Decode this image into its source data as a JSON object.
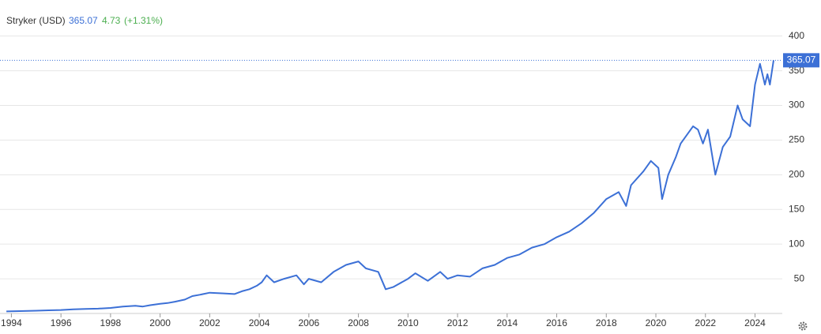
{
  "chart_data": {
    "type": "line",
    "series": [
      {
        "name": "Stryker (USD)",
        "color": "#3c70d6",
        "values": [
          3,
          3.5,
          4,
          4.5,
          5,
          6,
          6.5,
          7,
          8,
          10,
          11,
          10,
          12,
          14,
          15,
          17,
          20,
          25,
          27,
          30,
          29,
          28,
          32,
          35,
          40,
          45,
          55,
          45,
          50,
          55,
          42,
          50,
          45,
          60,
          70,
          75,
          65,
          60,
          35,
          38,
          50,
          58,
          47,
          60,
          50,
          55,
          53,
          65,
          70,
          80,
          85,
          95,
          100,
          110,
          118,
          130,
          145,
          165,
          175,
          155,
          185,
          205,
          220,
          210,
          165,
          200,
          225,
          245,
          270,
          265,
          245,
          265,
          200,
          240,
          255,
          300,
          280,
          270,
          330,
          360,
          330,
          345,
          330,
          365.07
        ]
      }
    ],
    "x": [
      1993.8,
      1994.5,
      1995,
      1995.5,
      1996,
      1996.5,
      1997,
      1997.5,
      1998,
      1998.5,
      1999,
      1999.3,
      1999.6,
      2000,
      2000.3,
      2000.6,
      2001,
      2001.3,
      2001.6,
      2002,
      2002.5,
      2003,
      2003.3,
      2003.6,
      2003.9,
      2004.1,
      2004.3,
      2004.6,
      2005,
      2005.5,
      2005.8,
      2006,
      2006.5,
      2007,
      2007.5,
      2008,
      2008.3,
      2008.8,
      2009.1,
      2009.4,
      2010,
      2010.3,
      2010.8,
      2011.3,
      2011.6,
      2012,
      2012.5,
      2013,
      2013.5,
      2014,
      2014.5,
      2015,
      2015.5,
      2016,
      2016.5,
      2017,
      2017.5,
      2018,
      2018.5,
      2018.8,
      2019,
      2019.5,
      2019.8,
      2020.1,
      2020.25,
      2020.5,
      2020.8,
      2021,
      2021.5,
      2021.7,
      2021.9,
      2022.1,
      2022.4,
      2022.7,
      2023,
      2023.3,
      2023.5,
      2023.8,
      2024,
      2024.2,
      2024.4,
      2024.5,
      2024.6,
      2024.75
    ],
    "xlim": [
      1993.7,
      2025.1
    ],
    "xticks": [
      1994,
      1996,
      1998,
      2000,
      2002,
      2004,
      2006,
      2008,
      2010,
      2012,
      2014,
      2016,
      2018,
      2020,
      2022,
      2024
    ],
    "ylim": [
      0,
      452
    ],
    "yticks": [
      50,
      100,
      150,
      200,
      250,
      300,
      350,
      400
    ],
    "grid": true,
    "price": 365.07,
    "change": 4.73,
    "change_label": "(+1.31%)",
    "price_color": "#3c70d6",
    "change_color": "#4caf50"
  }
}
